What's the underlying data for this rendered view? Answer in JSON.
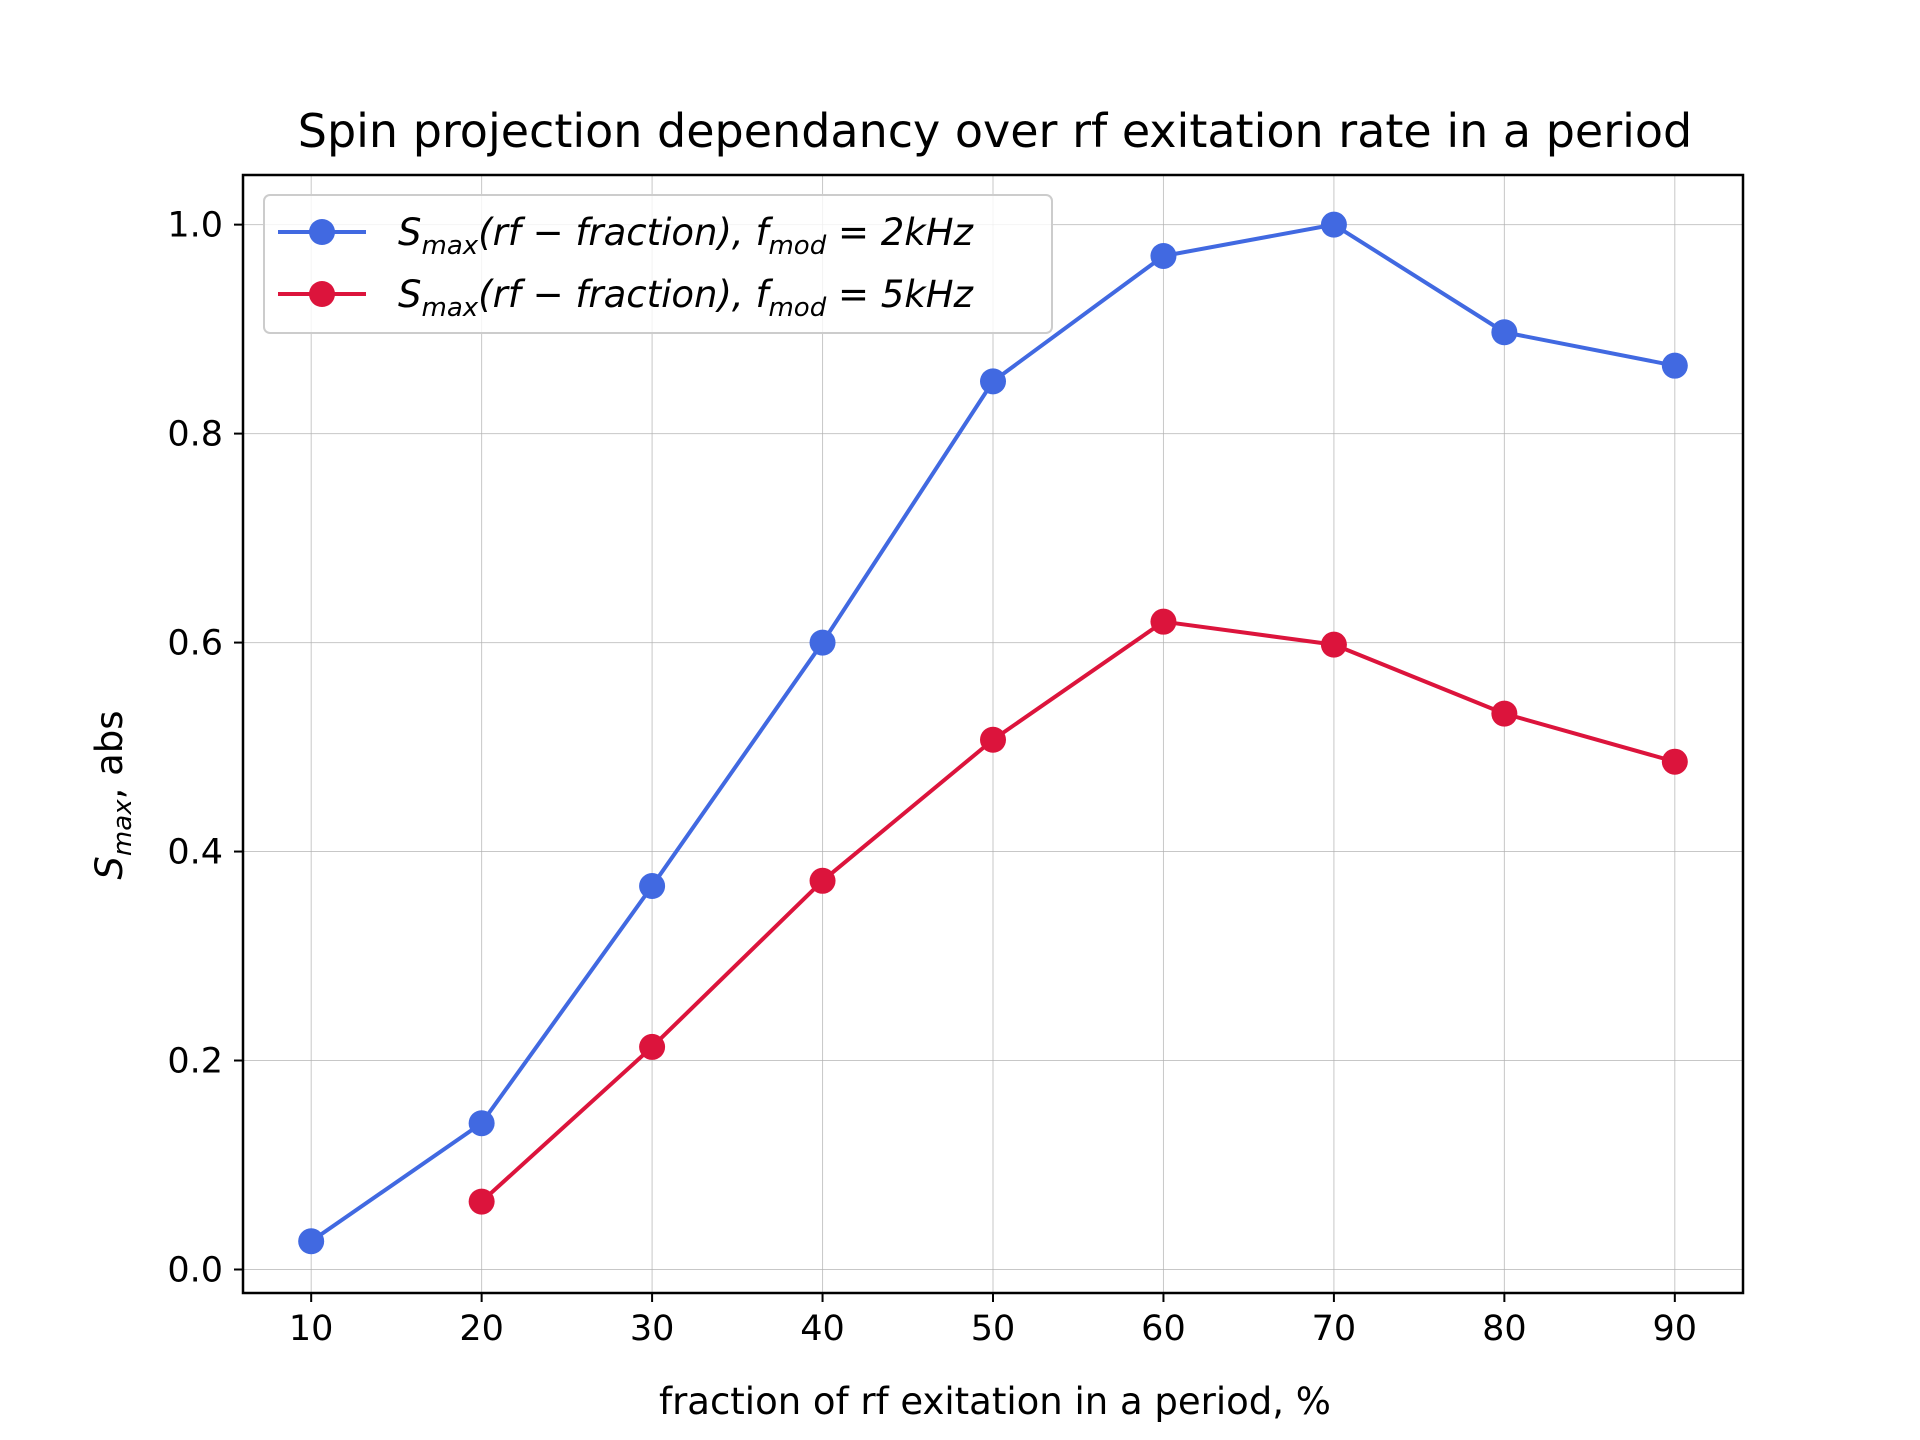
{
  "chart_data": {
    "type": "line",
    "title": "Spin projection dependancy over rf exitation rate in a period",
    "xlabel": "fraction of rf exitation in a period, %",
    "ylabel": {
      "main": "S",
      "sub": "max",
      "rest": ", abs"
    },
    "xlim": [
      6,
      94
    ],
    "ylim": [
      -0.0225,
      1.0475
    ],
    "xticks": [
      10,
      20,
      30,
      40,
      50,
      60,
      70,
      80,
      90
    ],
    "yticks": [
      0.0,
      0.2,
      0.4,
      0.6,
      0.8,
      1.0
    ],
    "ytick_labels": [
      "0.0",
      "0.2",
      "0.4",
      "0.6",
      "0.8",
      "1.0"
    ],
    "grid": true,
    "legend_position": "upper-left",
    "series": [
      {
        "legend": {
          "s": "S",
          "s_sub": "max",
          "mid": "(rf − fraction), f",
          "f_sub": "mod",
          "end": " = 2kHz"
        },
        "color": "#4169e1",
        "marker": "circle",
        "x": [
          10,
          20,
          30,
          40,
          50,
          60,
          70,
          80,
          90
        ],
        "y": [
          0.027,
          0.14,
          0.367,
          0.6,
          0.85,
          0.97,
          1.0,
          0.897,
          0.865
        ]
      },
      {
        "legend": {
          "s": "S",
          "s_sub": "max",
          "mid": "(rf − fraction), f",
          "f_sub": "mod",
          "end": " = 5kHz"
        },
        "color": "#dc143c",
        "marker": "circle",
        "x": [
          20,
          30,
          40,
          50,
          60,
          70,
          80,
          90
        ],
        "y": [
          0.065,
          0.213,
          0.372,
          0.507,
          0.62,
          0.598,
          0.532,
          0.486
        ]
      }
    ]
  }
}
